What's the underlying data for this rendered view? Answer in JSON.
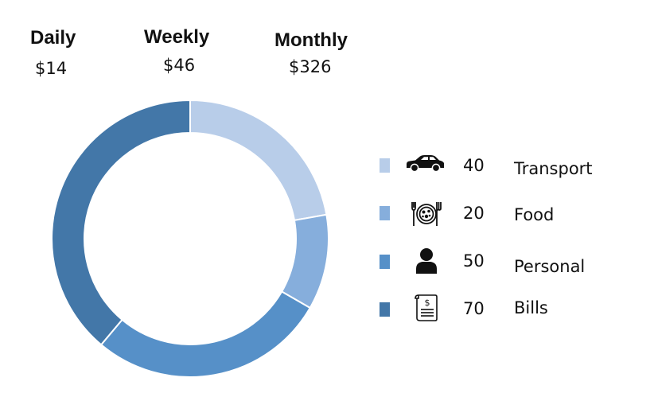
{
  "summary": {
    "daily": {
      "label": "Daily",
      "value": "$14"
    },
    "weekly": {
      "label": "Weekly",
      "value": "$46"
    },
    "monthly": {
      "label": "Monthly",
      "value": "$326"
    }
  },
  "chart_data": {
    "type": "pie",
    "donut": true,
    "categories": [
      "Transport",
      "Food",
      "Personal",
      "Bills"
    ],
    "values": [
      40,
      20,
      50,
      70
    ],
    "colors": [
      "#b8cde9",
      "#86aedc",
      "#5690c8",
      "#4377a8"
    ],
    "icons": [
      "car-icon",
      "plate-icon",
      "person-icon",
      "receipt-icon"
    ],
    "legend_position": "right",
    "start_angle_deg": 0,
    "direction": "clockwise"
  }
}
